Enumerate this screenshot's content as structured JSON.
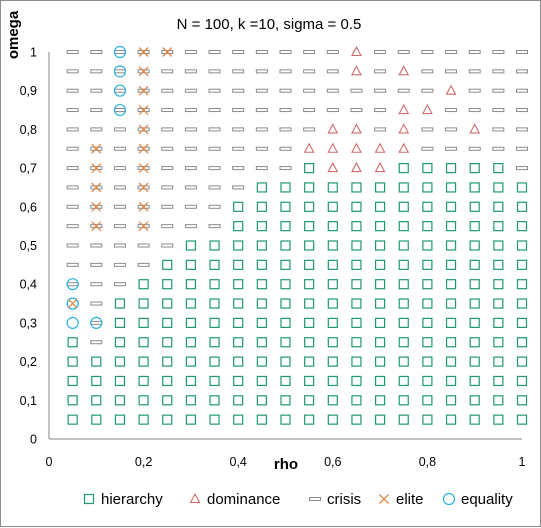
{
  "chart_data": {
    "type": "scatter",
    "title": "N = 100, k =10, sigma = 0.5",
    "xlabel": "rho",
    "ylabel": "omega",
    "xlim": [
      0,
      1
    ],
    "ylim": [
      0,
      1
    ],
    "x_ticks": [
      "0",
      "0,2",
      "0,4",
      "0,6",
      "0,8",
      "1"
    ],
    "y_ticks": [
      "0",
      "0,1",
      "0,2",
      "0,3",
      "0,4",
      "0,5",
      "0,6",
      "0,7",
      "0,8",
      "0,9",
      "1"
    ],
    "grid": false,
    "legend_position": "bottom",
    "grid_step": 0.05,
    "series": [
      {
        "name": "hierarchy",
        "marker": "square-open",
        "color": "#1e9a6a"
      },
      {
        "name": "dominance",
        "marker": "triangle-open",
        "color": "#d06a6a"
      },
      {
        "name": "crisis",
        "marker": "dash",
        "color": "#8a8a8a"
      },
      {
        "name": "elite",
        "marker": "x",
        "color": "#e0874a"
      },
      {
        "name": "equality",
        "marker": "circle-open",
        "color": "#2ab2e0"
      }
    ],
    "columns": [
      {
        "rho": 0.05,
        "cells": "HHHHHEECCCCCCCCCCCCC",
        "overlay": "......EE............"
      },
      {
        "rho": 0.1,
        "cells": "HHHHCCCCCCCCCCCCCCCC",
        "overlay": ".....E....XXXXX....."
      },
      {
        "rho": 0.15,
        "cells": "HHHHHHHCCCCCCCCCCCCC",
        "overlay": "................EEEE"
      },
      {
        "rho": 0.2,
        "cells": "HHHHHHHHCCCCCCCCCCCC",
        "overlay": "..........XXXXXXXXXX"
      },
      {
        "rho": 0.25,
        "cells": "HHHHHHHHHCCCCCCCCCCC",
        "overlay": "...................X"
      },
      {
        "rho": 0.3,
        "cells": "HHHHHHHHHHCCCCCCCCCC",
        "overlay": "...................."
      },
      {
        "rho": 0.35,
        "cells": "HHHHHHHHHHCCCCCCCCCC",
        "overlay": "...................."
      },
      {
        "rho": 0.4,
        "cells": "HHHHHHHHHHHHCCCCCCCC",
        "overlay": "...................."
      },
      {
        "rho": 0.45,
        "cells": "HHHHHHHHHHHHHCCCCCCC",
        "overlay": "...................."
      },
      {
        "rho": 0.5,
        "cells": "HHHHHHHHHHHHHCCCCCCC",
        "overlay": "...................."
      },
      {
        "rho": 0.55,
        "cells": "HHHHHHHHHHHHHHDCCCCC",
        "overlay": "...................."
      },
      {
        "rho": 0.6,
        "cells": "HHHHHHHHHHHHHDDDCCCC",
        "overlay": "...................."
      },
      {
        "rho": 0.65,
        "cells": "HHHHHHHHHHHHHDDDCCDD",
        "overlay": "...................."
      },
      {
        "rho": 0.7,
        "cells": "HHHHHHHHHHHHHDDCCCCC",
        "overlay": "...................."
      },
      {
        "rho": 0.75,
        "cells": "HHHHHHHHHHHHHHDDDCDC",
        "overlay": "...................."
      },
      {
        "rho": 0.8,
        "cells": "HHHHHHHHHHHHHHCCDCCC",
        "overlay": "...................."
      },
      {
        "rho": 0.85,
        "cells": "HHHHHHHHHHHHHHCCCDCC",
        "overlay": "...................."
      },
      {
        "rho": 0.9,
        "cells": "HHHHHHHHHHHHHHCDCCCC",
        "overlay": "...................."
      },
      {
        "rho": 0.95,
        "cells": "HHHHHHHHHHHHHHCCCCCC",
        "overlay": "...................."
      },
      {
        "rho": 1.0,
        "cells": "HHHHHHHHHHHHHCCCCCCC",
        "overlay": "...................."
      }
    ]
  }
}
